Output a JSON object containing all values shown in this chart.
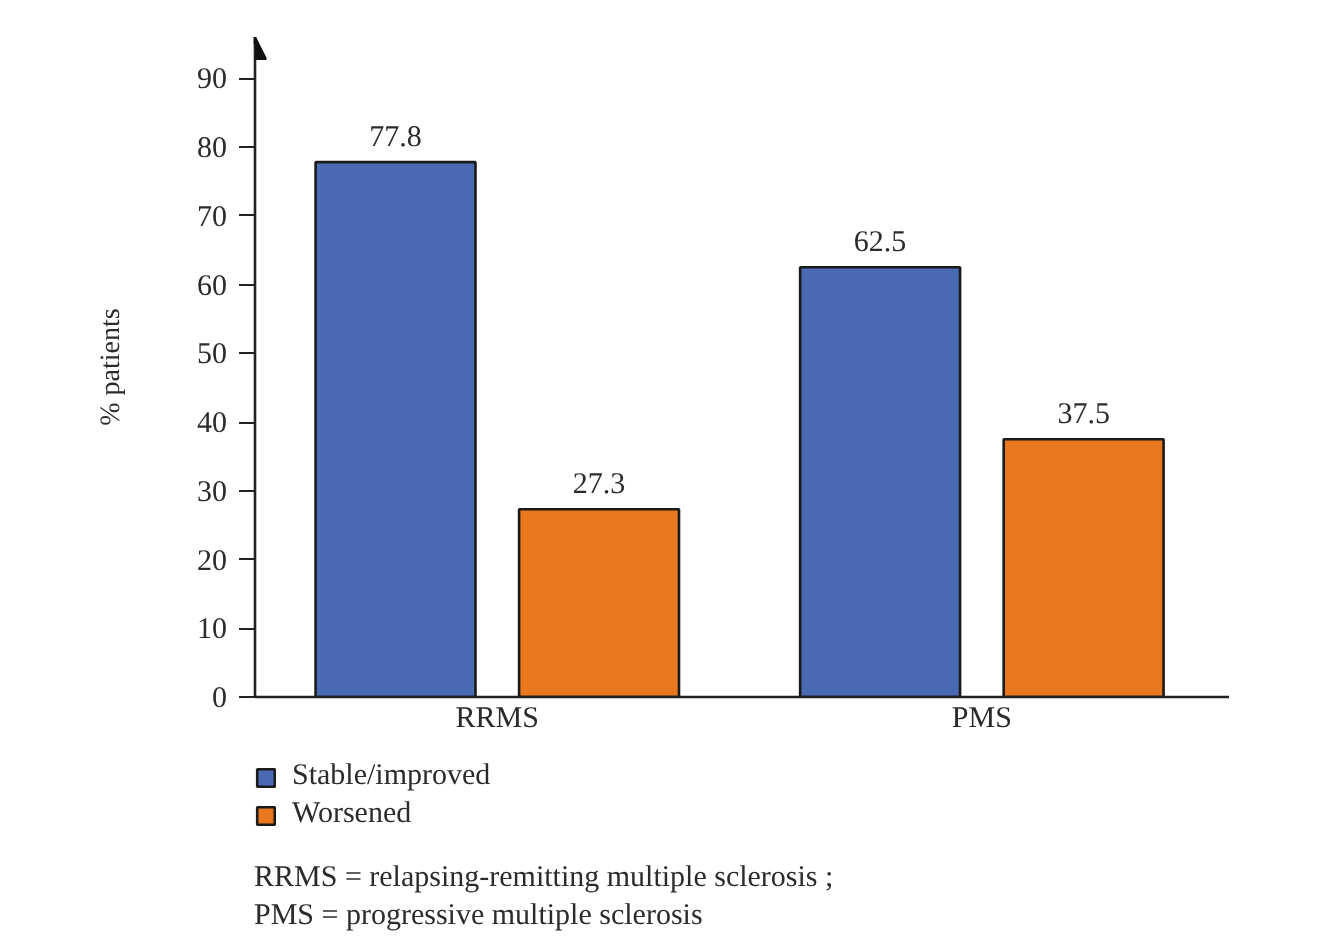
{
  "chart_data": {
    "type": "bar",
    "ylabel": "% patients",
    "categories": [
      "RRMS",
      "PMS"
    ],
    "series": [
      {
        "name": "Stable/improved",
        "color": "#4a6ab3",
        "values": [
          77.8,
          62.5
        ]
      },
      {
        "name": "Worsened",
        "color": "#e8771e",
        "values": [
          27.3,
          37.5
        ]
      }
    ],
    "ylim": [
      0,
      96
    ],
    "yticks": [
      0,
      10,
      20,
      30,
      40,
      50,
      60,
      70,
      80,
      90
    ],
    "data_labels": true,
    "legend": "bottom left",
    "grid": false,
    "annotations": [
      "RRMS = relapsing-remitting multiple sclerosis ;",
      "PMS = progressive multiple sclerosis"
    ]
  }
}
